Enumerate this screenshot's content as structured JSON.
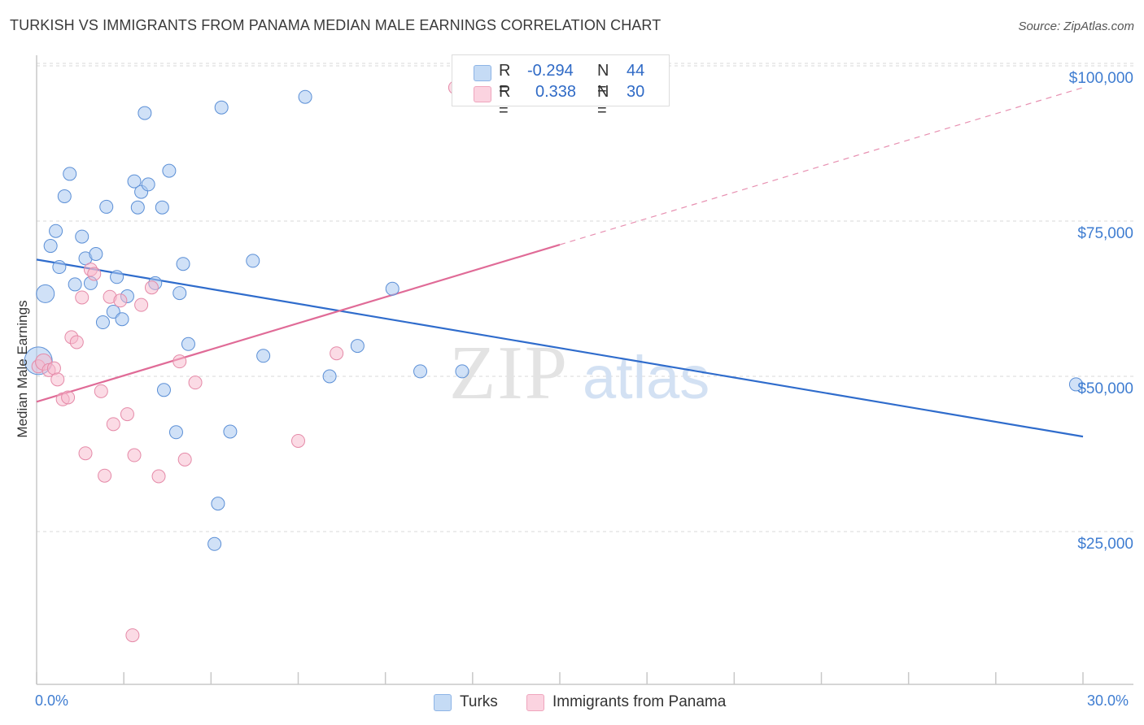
{
  "header": {
    "title": "TURKISH VS IMMIGRANTS FROM PANAMA MEDIAN MALE EARNINGS CORRELATION CHART",
    "source": "Source: ZipAtlas.com"
  },
  "legend": {
    "rows": [
      {
        "r_label": "R =",
        "r_value": "-0.294",
        "n_label": "N =",
        "n_value": "44",
        "color": "#a9c9f0"
      },
      {
        "r_label": "R =",
        "r_value": "0.338",
        "n_label": "N =",
        "n_value": "30",
        "color": "#f7b8cc"
      }
    ]
  },
  "bottom_legend": [
    {
      "label": "Turks",
      "color": "#a9c9f0"
    },
    {
      "label": "Immigrants from Panama",
      "color": "#f7b8cc"
    }
  ],
  "watermark": {
    "zip": "ZIP",
    "atlas": "atlas"
  },
  "colors": {
    "turks_fill": "#a9c9f0",
    "turks_stroke": "#5b8fd6",
    "turks_line": "#2f6ccc",
    "panama_fill": "#f7b8cc",
    "panama_stroke": "#e58aa8",
    "panama_line": "#e06b97",
    "tick_label": "#3f7dd1"
  },
  "chart_data": {
    "type": "scatter",
    "title": "TURKISH VS IMMIGRANTS FROM PANAMA MEDIAN MALE EARNINGS CORRELATION CHART",
    "xlabel": "",
    "ylabel": "Median Male Earnings",
    "xlim": [
      0,
      30
    ],
    "ylim": [
      0,
      105000
    ],
    "x_tick_labels": [
      "0.0%",
      "30.0%"
    ],
    "y_ticks": [
      25000,
      50000,
      75000,
      100000
    ],
    "y_tick_labels": [
      "$25,000",
      "$50,000",
      "$75,000",
      "$100,000"
    ],
    "grid": "horizontal dashed",
    "legend_position": "top-center",
    "series": [
      {
        "name": "Turks",
        "points": [
          [
            0.05,
            52500
          ],
          [
            0.25,
            63300
          ],
          [
            0.4,
            71000
          ],
          [
            0.55,
            73400
          ],
          [
            0.65,
            67600
          ],
          [
            0.8,
            79000
          ],
          [
            0.95,
            82600
          ],
          [
            1.1,
            64800
          ],
          [
            1.3,
            72500
          ],
          [
            1.4,
            69000
          ],
          [
            1.7,
            69700
          ],
          [
            1.55,
            65000
          ],
          [
            1.9,
            58700
          ],
          [
            2.0,
            77300
          ],
          [
            2.2,
            60400
          ],
          [
            2.3,
            66000
          ],
          [
            2.45,
            59200
          ],
          [
            2.6,
            62900
          ],
          [
            2.8,
            81400
          ],
          [
            2.9,
            77200
          ],
          [
            3.0,
            79700
          ],
          [
            3.1,
            92400
          ],
          [
            3.2,
            80900
          ],
          [
            3.4,
            65000
          ],
          [
            3.6,
            77200
          ],
          [
            3.8,
            83100
          ],
          [
            3.65,
            47800
          ],
          [
            4.1,
            63400
          ],
          [
            4.0,
            41000
          ],
          [
            4.2,
            68100
          ],
          [
            4.35,
            55200
          ],
          [
            5.1,
            23000
          ],
          [
            5.2,
            29500
          ],
          [
            5.3,
            93300
          ],
          [
            5.55,
            41100
          ],
          [
            6.2,
            68600
          ],
          [
            6.5,
            53300
          ],
          [
            7.7,
            95000
          ],
          [
            8.4,
            50000
          ],
          [
            9.2,
            54900
          ],
          [
            10.2,
            64100
          ],
          [
            11.0,
            50800
          ],
          [
            12.2,
            50800
          ],
          [
            29.8,
            48700
          ]
        ],
        "trend": {
          "x": [
            0,
            30
          ],
          "y": [
            68800,
            40300
          ],
          "style": "solid"
        }
      },
      {
        "name": "Immigrants from Panama",
        "points": [
          [
            0.05,
            51600
          ],
          [
            0.2,
            52300
          ],
          [
            0.35,
            51000
          ],
          [
            0.5,
            51300
          ],
          [
            0.6,
            49500
          ],
          [
            0.75,
            46300
          ],
          [
            0.9,
            46600
          ],
          [
            1.0,
            56300
          ],
          [
            1.15,
            55500
          ],
          [
            1.3,
            62700
          ],
          [
            1.4,
            37600
          ],
          [
            1.55,
            67200
          ],
          [
            1.65,
            66500
          ],
          [
            1.85,
            47600
          ],
          [
            1.95,
            34000
          ],
          [
            2.1,
            62800
          ],
          [
            2.2,
            42300
          ],
          [
            2.4,
            62200
          ],
          [
            2.6,
            43900
          ],
          [
            2.8,
            37300
          ],
          [
            2.75,
            8300
          ],
          [
            3.0,
            61500
          ],
          [
            3.3,
            64300
          ],
          [
            3.5,
            33900
          ],
          [
            4.1,
            52400
          ],
          [
            4.25,
            36600
          ],
          [
            4.55,
            49000
          ],
          [
            7.5,
            39600
          ],
          [
            8.6,
            53700
          ],
          [
            12.0,
            96500
          ]
        ],
        "trend": {
          "x": [
            0,
            15
          ],
          "y": [
            45900,
            71200
          ],
          "style": "solid"
        },
        "trend_extension": {
          "x": [
            15,
            30
          ],
          "y": [
            71200,
            96500
          ],
          "style": "dashed"
        }
      }
    ]
  }
}
